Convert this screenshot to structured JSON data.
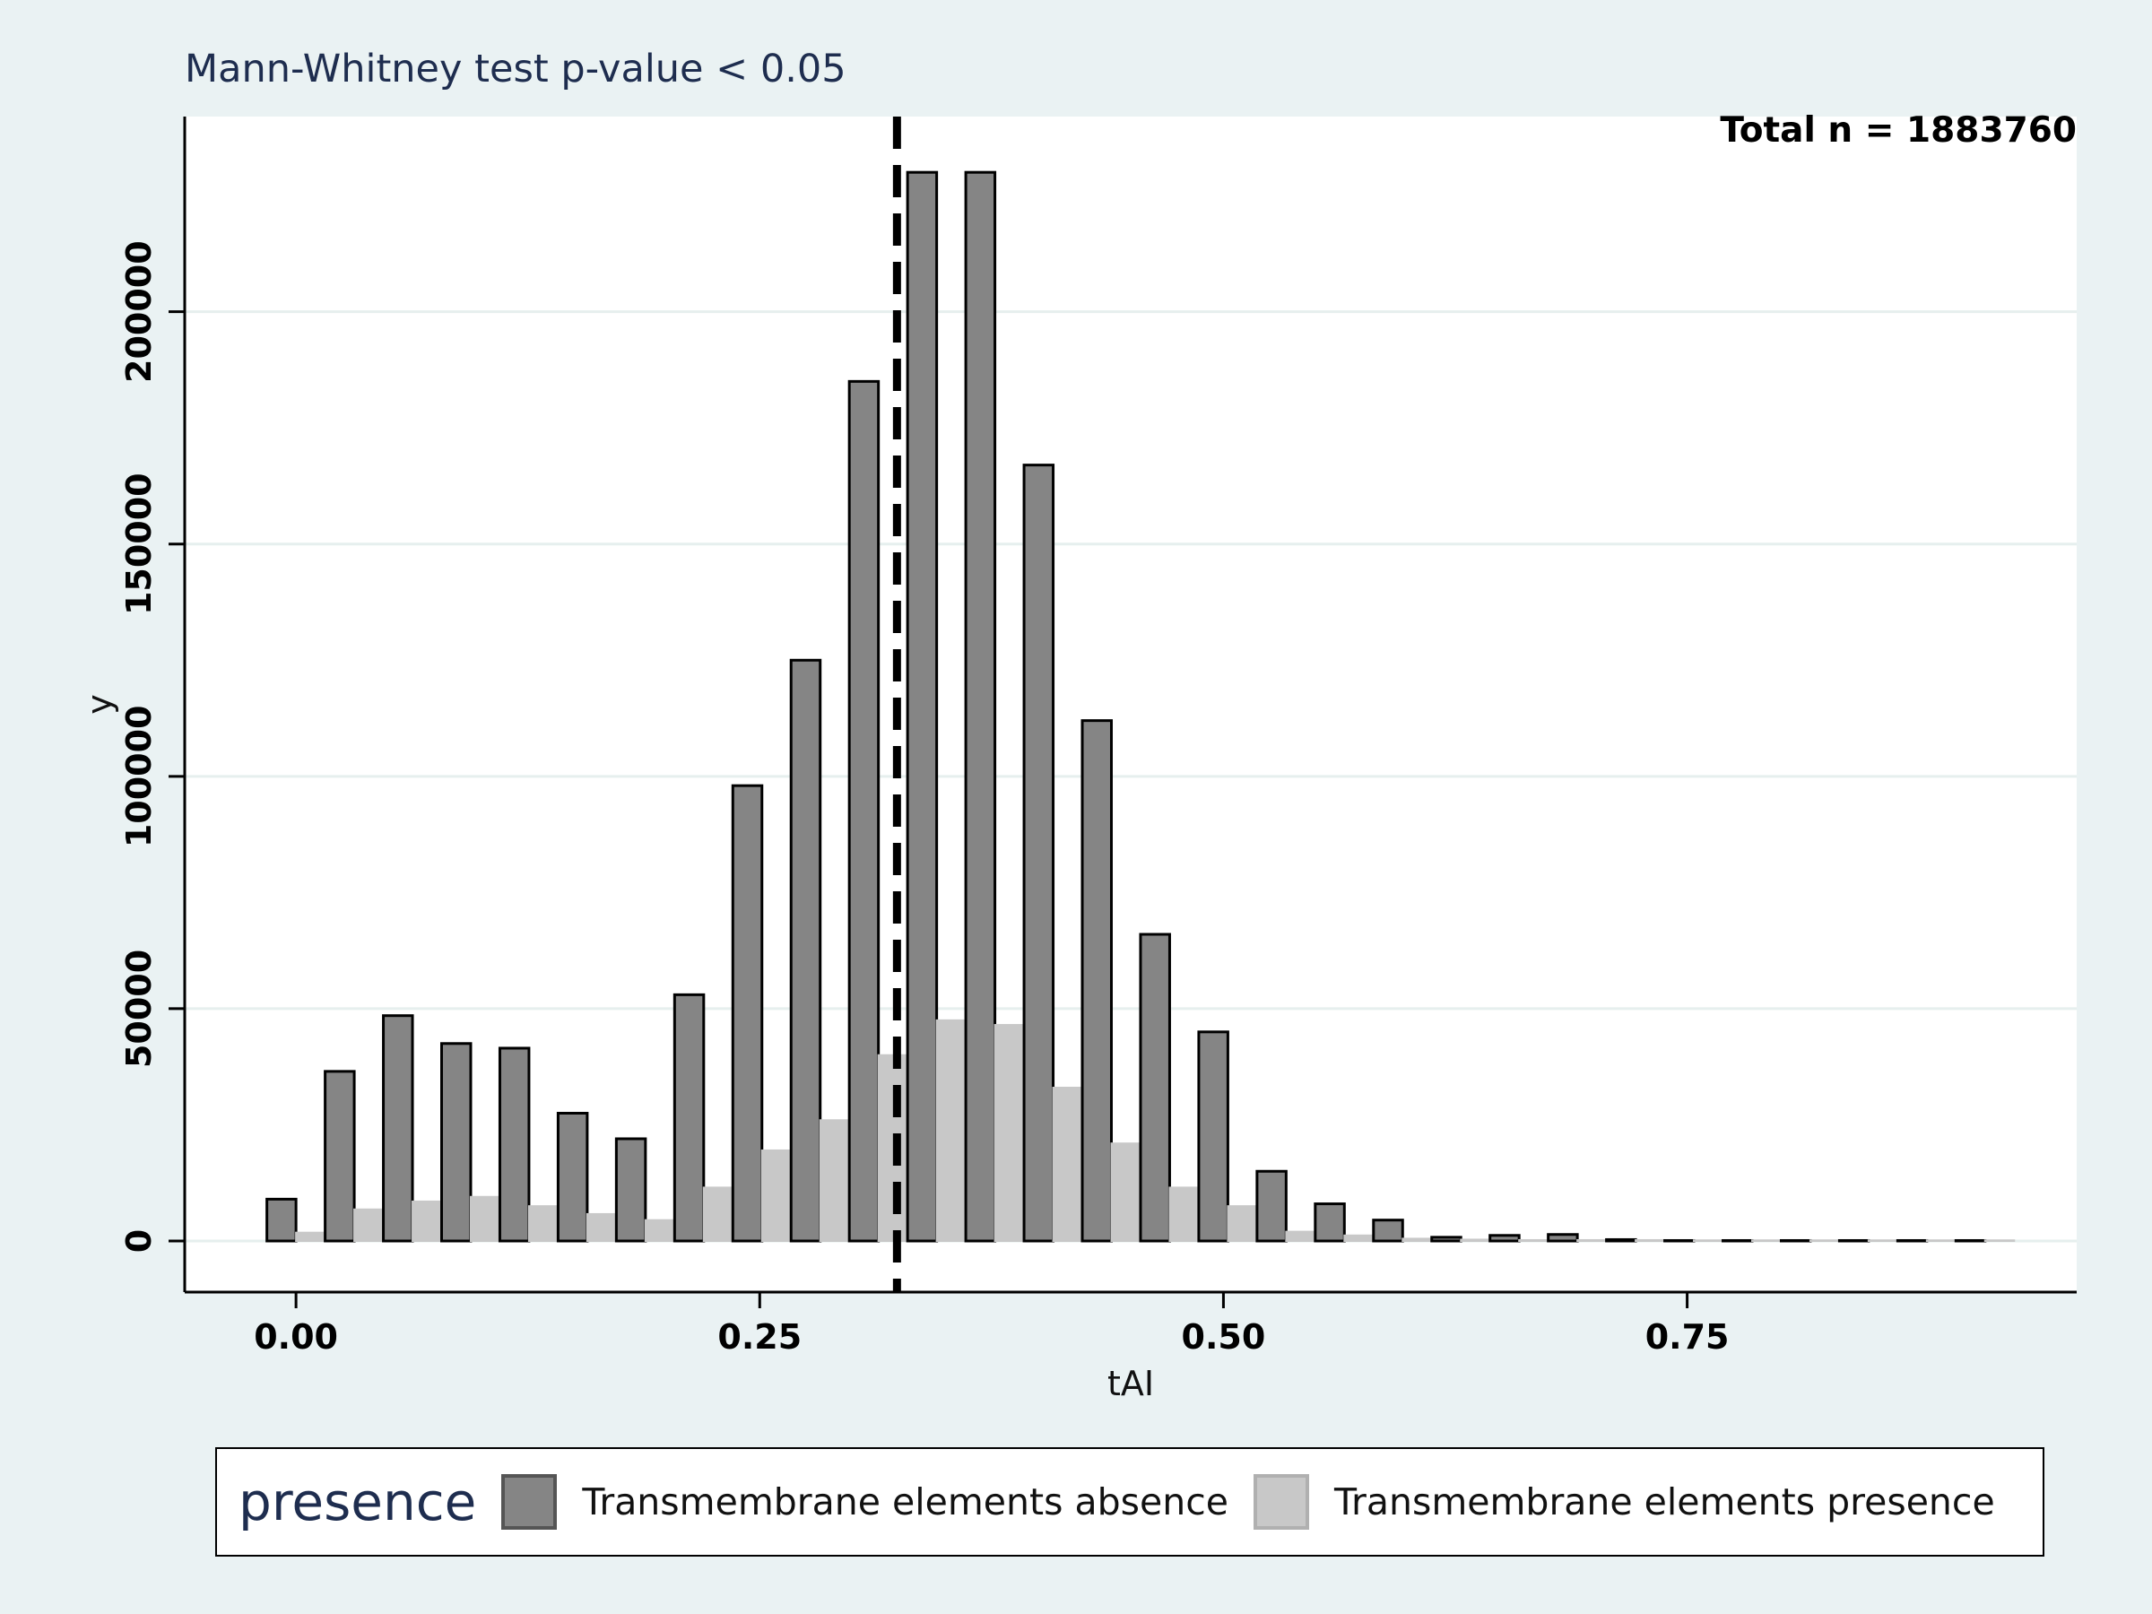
{
  "chart_data": {
    "type": "bar",
    "title": "Mann-Whitney test  p-value < 0.05",
    "annotation": "Total n = 1883760",
    "xlabel": "tAI",
    "ylabel": "y",
    "xlim": [
      -0.06,
      0.96
    ],
    "ylim": [
      -11000,
      242000
    ],
    "bin_width": 0.0314,
    "xticks": [
      0.0,
      0.25,
      0.5,
      0.75
    ],
    "xtick_labels": [
      "0.00",
      "0.25",
      "0.50",
      "0.75"
    ],
    "yticks": [
      0,
      50000,
      100000,
      150000,
      200000
    ],
    "ytick_labels": [
      "0",
      "50000",
      "100000",
      "150000",
      "200000"
    ],
    "grid": true,
    "legend_placement": "bottom",
    "mean_line_x": 0.324,
    "x": [
      0.0,
      0.0314,
      0.0628,
      0.0942,
      0.1256,
      0.157,
      0.1884,
      0.2198,
      0.2512,
      0.2826,
      0.314,
      0.3454,
      0.3768,
      0.4082,
      0.4396,
      0.471,
      0.5024,
      0.5338,
      0.5652,
      0.5966,
      0.628,
      0.6594,
      0.6908,
      0.7222,
      0.7536,
      0.785,
      0.8164,
      0.8478,
      0.8792,
      0.9106
    ],
    "series": [
      {
        "name": "Transmembrane elements absence",
        "color": "#858585",
        "values": [
          9000,
          36500,
          48500,
          42500,
          41500,
          27500,
          22000,
          53000,
          98000,
          125000,
          185000,
          230000,
          230000,
          167000,
          112000,
          66000,
          45000,
          15000,
          8000,
          4500,
          800,
          1200,
          1400,
          300,
          100,
          100,
          100,
          100,
          100,
          100
        ]
      },
      {
        "name": "Transmembrane elements presence",
        "color": "#c8c8c8",
        "values": [
          1800,
          6800,
          8500,
          9500,
          7500,
          5800,
          4500,
          11500,
          19500,
          26000,
          40000,
          47500,
          46500,
          33000,
          21000,
          11500,
          7500,
          2000,
          1200,
          500,
          300,
          200,
          200,
          200,
          150,
          150,
          150,
          150,
          150,
          150
        ]
      }
    ],
    "legend_title": "presence"
  }
}
